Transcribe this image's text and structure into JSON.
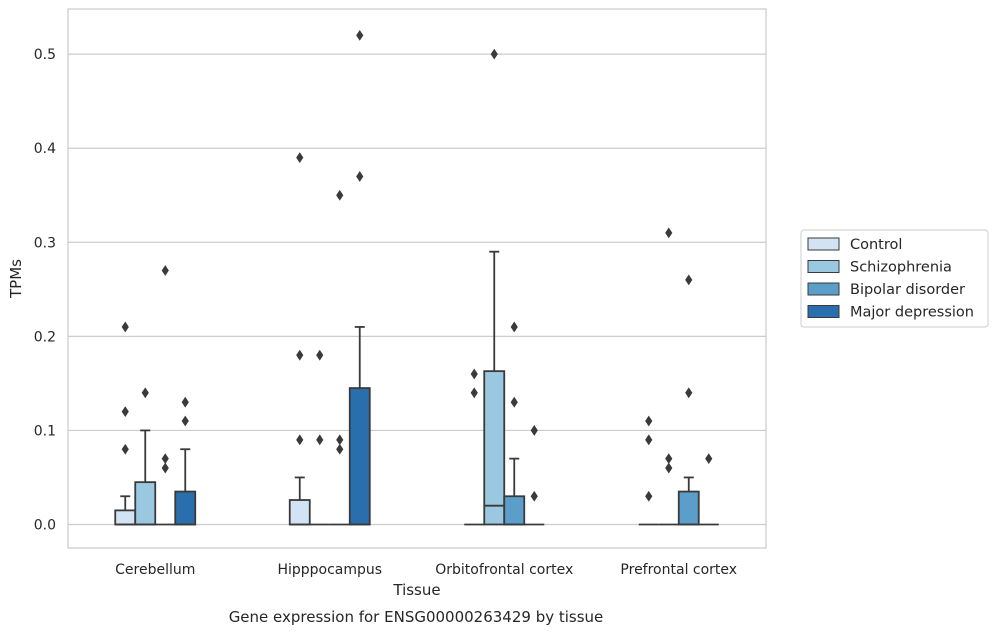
{
  "chart_data": {
    "type": "box",
    "xlabel": "Tissue",
    "ylabel": "TPMs",
    "caption": "Gene expression for ENSG00000263429 by tissue",
    "ylim": [
      -0.025,
      0.548
    ],
    "yticks": [
      0.0,
      0.1,
      0.2,
      0.3,
      0.4,
      0.5
    ],
    "ytick_labels": [
      "0.0",
      "0.1",
      "0.2",
      "0.3",
      "0.4",
      "0.5"
    ],
    "grid": "y",
    "legend_position": "right",
    "categories": [
      "Cerebellum",
      "Hipppocampus",
      "Orbitofrontal cortex",
      "Prefrontal cortex"
    ],
    "series": [
      {
        "name": "Control",
        "color": "#d2e3f3",
        "boxes": [
          {
            "q1": 0.0,
            "median": 0.0,
            "q3": 0.015,
            "whisker_low": 0.0,
            "whisker_high": 0.03,
            "outliers": [
              0.08,
              0.12,
              0.21
            ]
          },
          {
            "q1": 0.0,
            "median": 0.0,
            "q3": 0.026,
            "whisker_low": 0.0,
            "whisker_high": 0.05,
            "outliers": [
              0.09,
              0.18,
              0.39
            ]
          },
          {
            "q1": 0.0,
            "median": 0.0,
            "q3": 0.0,
            "whisker_low": 0.0,
            "whisker_high": 0.0,
            "outliers": [
              0.14,
              0.16
            ]
          },
          {
            "q1": 0.0,
            "median": 0.0,
            "q3": 0.0,
            "whisker_low": 0.0,
            "whisker_high": 0.0,
            "outliers": [
              0.03,
              0.09,
              0.11
            ]
          }
        ]
      },
      {
        "name": "Schizophrenia",
        "color": "#9ac8e0",
        "boxes": [
          {
            "q1": 0.0,
            "median": 0.0,
            "q3": 0.045,
            "whisker_low": 0.0,
            "whisker_high": 0.1,
            "outliers": [
              0.14
            ]
          },
          {
            "q1": 0.0,
            "median": 0.0,
            "q3": 0.0,
            "whisker_low": 0.0,
            "whisker_high": 0.0,
            "outliers": [
              0.09,
              0.18
            ]
          },
          {
            "q1": 0.0,
            "median": 0.02,
            "q3": 0.163,
            "whisker_low": 0.0,
            "whisker_high": 0.29,
            "outliers": [
              0.5
            ]
          },
          {
            "q1": 0.0,
            "median": 0.0,
            "q3": 0.0,
            "whisker_low": 0.0,
            "whisker_high": 0.0,
            "outliers": [
              0.06,
              0.07,
              0.31
            ]
          }
        ]
      },
      {
        "name": "Bipolar disorder",
        "color": "#5a9ec9",
        "boxes": [
          {
            "q1": 0.0,
            "median": 0.0,
            "q3": 0.0,
            "whisker_low": 0.0,
            "whisker_high": 0.0,
            "outliers": [
              0.06,
              0.07,
              0.27
            ]
          },
          {
            "q1": 0.0,
            "median": 0.0,
            "q3": 0.0,
            "whisker_low": 0.0,
            "whisker_high": 0.0,
            "outliers": [
              0.08,
              0.09,
              0.35
            ]
          },
          {
            "q1": 0.0,
            "median": 0.0,
            "q3": 0.03,
            "whisker_low": 0.0,
            "whisker_high": 0.07,
            "outliers": [
              0.13,
              0.21
            ]
          },
          {
            "q1": 0.0,
            "median": 0.0,
            "q3": 0.035,
            "whisker_low": 0.0,
            "whisker_high": 0.05,
            "outliers": [
              0.14,
              0.26
            ]
          }
        ]
      },
      {
        "name": "Major depression",
        "color": "#2a6fad",
        "boxes": [
          {
            "q1": 0.0,
            "median": 0.0,
            "q3": 0.035,
            "whisker_low": 0.0,
            "whisker_high": 0.08,
            "outliers": [
              0.11,
              0.13
            ]
          },
          {
            "q1": 0.0,
            "median": 0.0,
            "q3": 0.145,
            "whisker_low": 0.0,
            "whisker_high": 0.21,
            "outliers": [
              0.37,
              0.52
            ]
          },
          {
            "q1": 0.0,
            "median": 0.0,
            "q3": 0.0,
            "whisker_low": 0.0,
            "whisker_high": 0.0,
            "outliers": [
              0.03,
              0.1
            ]
          },
          {
            "q1": 0.0,
            "median": 0.0,
            "q3": 0.0,
            "whisker_low": 0.0,
            "whisker_high": 0.0,
            "outliers": [
              0.07
            ]
          }
        ]
      }
    ]
  }
}
